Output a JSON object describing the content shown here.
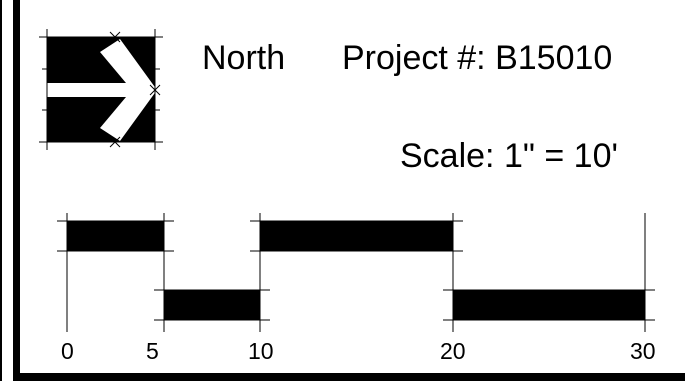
{
  "north_label": "North",
  "project": "Project #: B15010",
  "scale": "Scale: 1\" = 10'",
  "scale_bar": {
    "ticks": [
      {
        "label": "0"
      },
      {
        "label": "5"
      },
      {
        "label": "10"
      },
      {
        "label": "20"
      },
      {
        "label": "30"
      }
    ]
  },
  "colors": {
    "ink": "#000000",
    "paper": "#ffffff"
  }
}
